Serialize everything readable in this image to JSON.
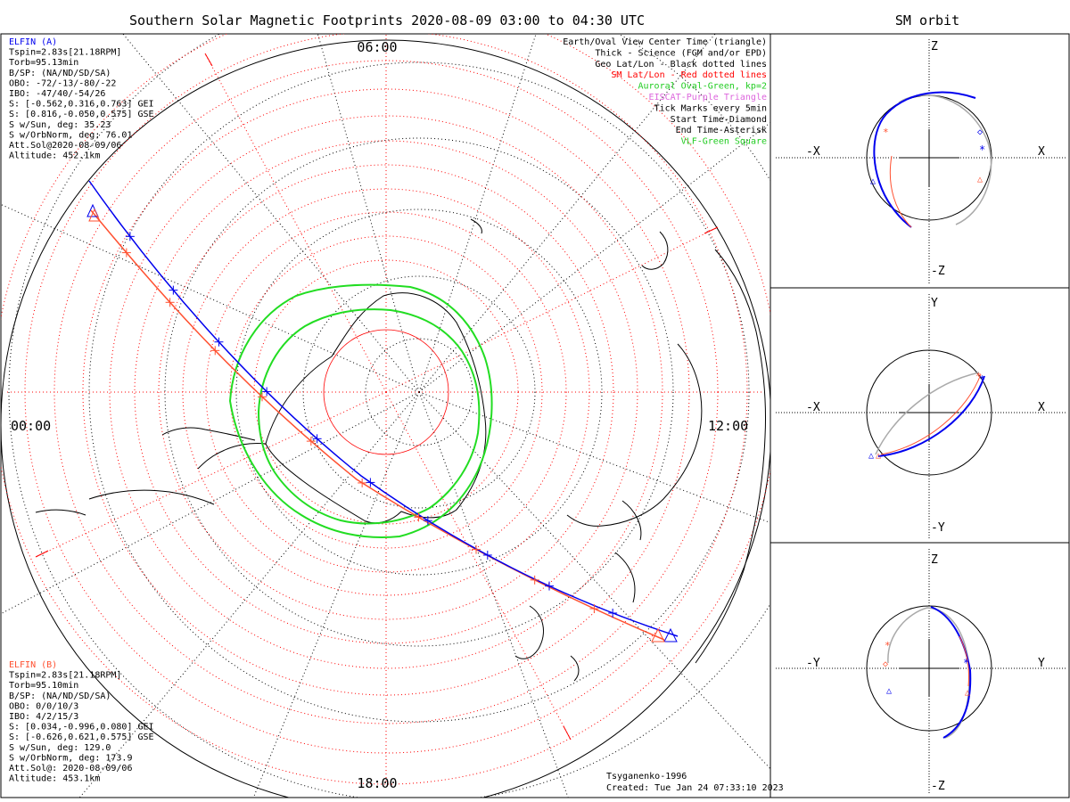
{
  "title": "Southern Solar Magnetic Footprints 2020-08-09 03:00 to 04:30 UTC",
  "orbit_title": "SM orbit",
  "time_labels": {
    "top": "06:00",
    "left": "00:00",
    "right": "12:00",
    "bottom": "18:00"
  },
  "elfin_a": {
    "lines": [
      "ELFIN (A)",
      "Tspin=2.83s[21.18RPM]",
      "Torb=95.13min",
      "B/SP: (NA/ND/SD/SA)",
      "OBO: -72/-13/-80/-22",
      "IBO: -47/40/-54/26",
      "S: [-0.562,0.316,0.763] GEI",
      "S: [0.816,-0.050,0.575] GSE",
      "S w/Sun, deg: 35.23",
      "S w/OrbNorm, deg: 76.01",
      "Att.Sol@2020-08-09/06",
      "Altitude: 452.1km"
    ]
  },
  "elfin_b": {
    "lines": [
      "ELFIN (B)",
      "Tspin=2.83s[21.18RPM]",
      "Torb=95.10min",
      "B/SP: (NA/ND/SD/SA)",
      "OBO: 0/0/10/3",
      "IBO: 4/2/15/3",
      "S: [0.034,-0.996,0.080] GEI",
      "S: [-0.626,0.621,0.575] GSE",
      "S w/Sun, deg: 129.0",
      "S w/OrbNorm, deg: 173.9",
      "Att.Sol@: 2020-08-09/06",
      "Altitude: 453.1km"
    ]
  },
  "legend": [
    {
      "text": "Earth/Oval View Center Time (triangle)",
      "color": "#000000"
    },
    {
      "text": "Thick - Science (FGM and/or EPD)",
      "color": "#000000"
    },
    {
      "text": "Geo Lat/Lon - Black dotted lines",
      "color": "#000000"
    },
    {
      "text": "SM Lat/Lon - Red dotted lines",
      "color": "#ff0000"
    },
    {
      "text": "Auroral Oval-Green, kp=2",
      "color": "#22cc22"
    },
    {
      "text": "EISCAT-Purple Triangle",
      "color": "#dd66dd"
    },
    {
      "text": "Tick Marks every 5min",
      "color": "#000000"
    },
    {
      "text": "Start Time-Diamond",
      "color": "#000000"
    },
    {
      "text": "End Time-Asterisk",
      "color": "#000000"
    },
    {
      "text": "VLF-Green Square",
      "color": "#22cc22"
    }
  ],
  "credits": {
    "model": "Tsyganenko-1996",
    "created": "Created: Tue Jan 24 07:33:10 2023"
  },
  "panels": [
    {
      "h_left": "-X",
      "h_right": "X",
      "v_top": "Z",
      "v_bottom": "-Z"
    },
    {
      "h_left": "-X",
      "h_right": "X",
      "v_top": "Y",
      "v_bottom": "-Y"
    },
    {
      "h_left": "-Y",
      "h_right": "Y",
      "v_top": "Z",
      "v_bottom": "-Z"
    }
  ],
  "colors": {
    "elfin_a": "#0000ee",
    "elfin_b": "#ff5030",
    "oval": "#22dd22",
    "sm_grid": "#ff0000",
    "geo_grid": "#000000",
    "orbit_gray": "#aaaaaa"
  }
}
